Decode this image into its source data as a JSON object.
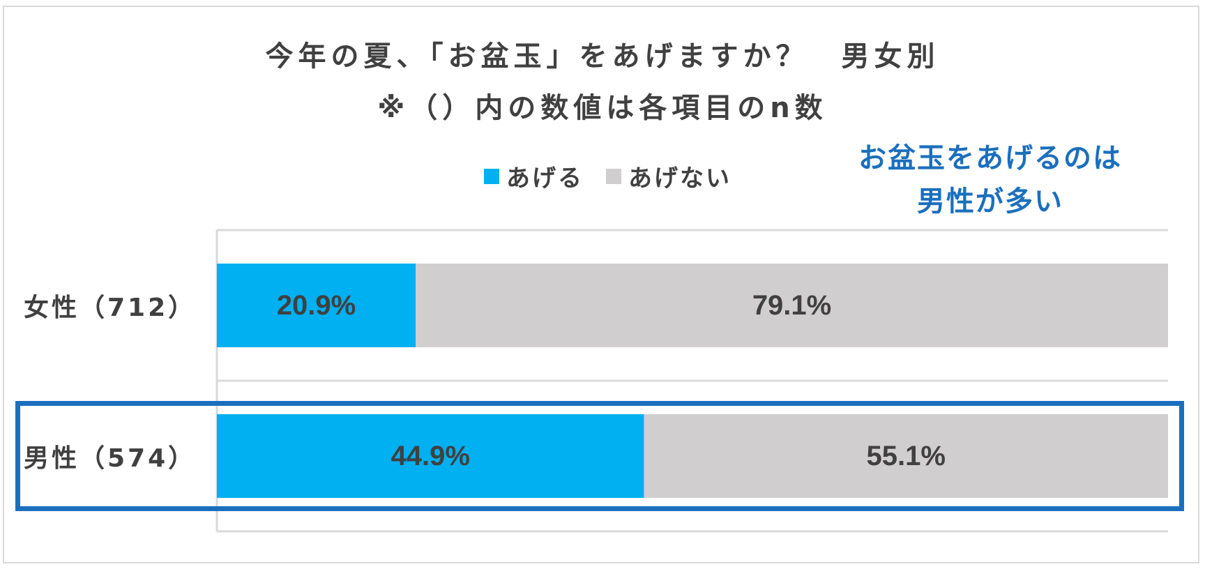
{
  "chart_data": {
    "type": "bar",
    "orientation": "horizontal",
    "stacked": "100%",
    "title": "今年の夏、「お盆玉」をあげますか？　男女別",
    "subtitle": "※（）内の数値は各項目のn数",
    "categories": [
      "女性（712）",
      "男性（574）"
    ],
    "series": [
      {
        "name": "あげる",
        "values": [
          20.9,
          44.9
        ],
        "labels": [
          "20.9%",
          "44.9%"
        ],
        "color": "#00b0f0"
      },
      {
        "name": "あげない",
        "values": [
          79.1,
          55.1
        ],
        "labels": [
          "79.1%",
          "55.1%"
        ],
        "color": "#d0cece"
      }
    ],
    "xlim": [
      0,
      100
    ],
    "legend_position": "top",
    "annotation": [
      "お盆玉をあげるのは",
      "男性が多い"
    ],
    "highlight_category": "男性（574）",
    "highlight_color": "#1b6fbd",
    "grid": true
  }
}
